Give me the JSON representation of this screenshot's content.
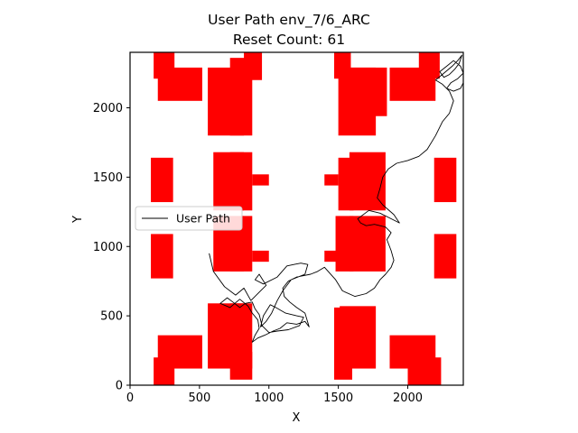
{
  "chart_data": {
    "type": "scatter",
    "title": "User Path env_7/6_ARC",
    "subtitle": "Reset Count: 61",
    "xlabel": "X",
    "ylabel": "Y",
    "xlim": [
      0,
      2400
    ],
    "ylim": [
      0,
      2400
    ],
    "xticks": [
      0,
      500,
      1000,
      1500,
      2000
    ],
    "yticks": [
      0,
      500,
      1000,
      1500,
      2000
    ],
    "grid": false,
    "legend": {
      "position": "center-left",
      "entries": [
        "User Path"
      ]
    },
    "colors": {
      "obstacle": "#ff0000",
      "path": "#000000"
    },
    "obstacles": [
      {
        "x": 150,
        "y": 1320,
        "w": 160,
        "h": 320
      },
      {
        "x": 150,
        "y": 770,
        "w": 160,
        "h": 320
      },
      {
        "x": 2190,
        "y": 1320,
        "w": 160,
        "h": 320
      },
      {
        "x": 2190,
        "y": 770,
        "w": 160,
        "h": 320
      },
      {
        "x": 170,
        "y": 2210,
        "w": 150,
        "h": 190
      },
      {
        "x": 200,
        "y": 2050,
        "w": 320,
        "h": 240
      },
      {
        "x": 560,
        "y": 1800,
        "w": 260,
        "h": 490
      },
      {
        "x": 720,
        "y": 1800,
        "w": 160,
        "h": 560
      },
      {
        "x": 820,
        "y": 2200,
        "w": 130,
        "h": 200
      },
      {
        "x": 1470,
        "y": 2210,
        "w": 120,
        "h": 190
      },
      {
        "x": 1500,
        "y": 1800,
        "w": 270,
        "h": 490
      },
      {
        "x": 1590,
        "y": 1940,
        "w": 260,
        "h": 350
      },
      {
        "x": 1870,
        "y": 2050,
        "w": 330,
        "h": 240
      },
      {
        "x": 2080,
        "y": 2210,
        "w": 150,
        "h": 190
      },
      {
        "x": 600,
        "y": 1260,
        "w": 220,
        "h": 420
      },
      {
        "x": 720,
        "y": 1260,
        "w": 160,
        "h": 420
      },
      {
        "x": 880,
        "y": 1440,
        "w": 120,
        "h": 80
      },
      {
        "x": 1400,
        "y": 1440,
        "w": 100,
        "h": 80
      },
      {
        "x": 1500,
        "y": 1260,
        "w": 110,
        "h": 380
      },
      {
        "x": 1580,
        "y": 1260,
        "w": 260,
        "h": 420
      },
      {
        "x": 600,
        "y": 820,
        "w": 220,
        "h": 400
      },
      {
        "x": 720,
        "y": 820,
        "w": 160,
        "h": 400
      },
      {
        "x": 880,
        "y": 890,
        "w": 120,
        "h": 80
      },
      {
        "x": 1400,
        "y": 890,
        "w": 100,
        "h": 80
      },
      {
        "x": 1480,
        "y": 820,
        "w": 130,
        "h": 400
      },
      {
        "x": 1580,
        "y": 820,
        "w": 260,
        "h": 400
      },
      {
        "x": 560,
        "y": 120,
        "w": 260,
        "h": 470
      },
      {
        "x": 720,
        "y": 120,
        "w": 160,
        "h": 470
      },
      {
        "x": 200,
        "y": 120,
        "w": 320,
        "h": 240
      },
      {
        "x": 170,
        "y": 0,
        "w": 150,
        "h": 200
      },
      {
        "x": 720,
        "y": 40,
        "w": 160,
        "h": 200
      },
      {
        "x": 1470,
        "y": 40,
        "w": 130,
        "h": 520
      },
      {
        "x": 1510,
        "y": 120,
        "w": 260,
        "h": 450
      },
      {
        "x": 1870,
        "y": 120,
        "w": 330,
        "h": 240
      },
      {
        "x": 2000,
        "y": 0,
        "w": 240,
        "h": 200
      }
    ],
    "path": [
      [
        570,
        950
      ],
      [
        600,
        820
      ],
      [
        680,
        710
      ],
      [
        760,
        650
      ],
      [
        820,
        700
      ],
      [
        870,
        610
      ],
      [
        940,
        680
      ],
      [
        980,
        720
      ],
      [
        930,
        800
      ],
      [
        900,
        760
      ],
      [
        960,
        730
      ],
      [
        1060,
        780
      ],
      [
        1130,
        860
      ],
      [
        1180,
        870
      ],
      [
        1230,
        880
      ],
      [
        1280,
        870
      ],
      [
        1260,
        800
      ],
      [
        1160,
        760
      ],
      [
        1100,
        680
      ],
      [
        1060,
        610
      ],
      [
        1020,
        520
      ],
      [
        980,
        460
      ],
      [
        940,
        420
      ],
      [
        960,
        500
      ],
      [
        1010,
        580
      ],
      [
        1050,
        560
      ],
      [
        1120,
        520
      ],
      [
        1200,
        500
      ],
      [
        1250,
        490
      ],
      [
        1220,
        430
      ],
      [
        1140,
        400
      ],
      [
        1060,
        390
      ],
      [
        1000,
        380
      ],
      [
        950,
        430
      ],
      [
        930,
        510
      ],
      [
        900,
        550
      ],
      [
        880,
        600
      ],
      [
        830,
        590
      ],
      [
        790,
        560
      ],
      [
        740,
        600
      ],
      [
        700,
        630
      ],
      [
        650,
        590
      ],
      [
        720,
        560
      ],
      [
        790,
        620
      ],
      [
        850,
        570
      ],
      [
        880,
        520
      ],
      [
        920,
        470
      ],
      [
        930,
        410
      ],
      [
        900,
        360
      ],
      [
        880,
        310
      ],
      [
        920,
        340
      ],
      [
        970,
        360
      ],
      [
        1030,
        390
      ],
      [
        1080,
        410
      ],
      [
        1130,
        450
      ],
      [
        1200,
        440
      ],
      [
        1260,
        460
      ],
      [
        1290,
        420
      ],
      [
        1260,
        520
      ],
      [
        1200,
        560
      ],
      [
        1150,
        600
      ],
      [
        1110,
        640
      ],
      [
        1100,
        700
      ],
      [
        1140,
        750
      ],
      [
        1200,
        780
      ],
      [
        1300,
        800
      ],
      [
        1350,
        820
      ],
      [
        1400,
        850
      ],
      [
        1480,
        760
      ],
      [
        1530,
        680
      ],
      [
        1620,
        640
      ],
      [
        1700,
        660
      ],
      [
        1760,
        700
      ],
      [
        1800,
        760
      ],
      [
        1840,
        800
      ],
      [
        1880,
        850
      ],
      [
        1900,
        900
      ],
      [
        1880,
        970
      ],
      [
        1850,
        1050
      ],
      [
        1880,
        1100
      ],
      [
        1840,
        1140
      ],
      [
        1760,
        1160
      ],
      [
        1700,
        1150
      ],
      [
        1660,
        1170
      ],
      [
        1640,
        1200
      ],
      [
        1720,
        1260
      ],
      [
        1800,
        1240
      ],
      [
        1880,
        1200
      ],
      [
        1940,
        1170
      ],
      [
        1900,
        1230
      ],
      [
        1820,
        1300
      ],
      [
        1780,
        1350
      ],
      [
        1800,
        1420
      ],
      [
        1820,
        1500
      ],
      [
        1860,
        1560
      ],
      [
        1920,
        1600
      ],
      [
        2000,
        1620
      ],
      [
        2080,
        1650
      ],
      [
        2140,
        1700
      ],
      [
        2200,
        1800
      ],
      [
        2250,
        1900
      ],
      [
        2300,
        1960
      ],
      [
        2330,
        2050
      ],
      [
        2300,
        2120
      ],
      [
        2250,
        2170
      ],
      [
        2200,
        2200
      ],
      [
        2260,
        2250
      ],
      [
        2320,
        2300
      ],
      [
        2360,
        2340
      ],
      [
        2390,
        2380
      ],
      [
        2370,
        2320
      ],
      [
        2340,
        2280
      ],
      [
        2300,
        2240
      ],
      [
        2260,
        2220
      ],
      [
        2230,
        2260
      ],
      [
        2280,
        2300
      ],
      [
        2330,
        2340
      ],
      [
        2380,
        2300
      ],
      [
        2400,
        2250
      ],
      [
        2360,
        2210
      ],
      [
        2310,
        2180
      ],
      [
        2280,
        2140
      ],
      [
        2330,
        2120
      ],
      [
        2380,
        2140
      ],
      [
        2400,
        2180
      ]
    ]
  }
}
